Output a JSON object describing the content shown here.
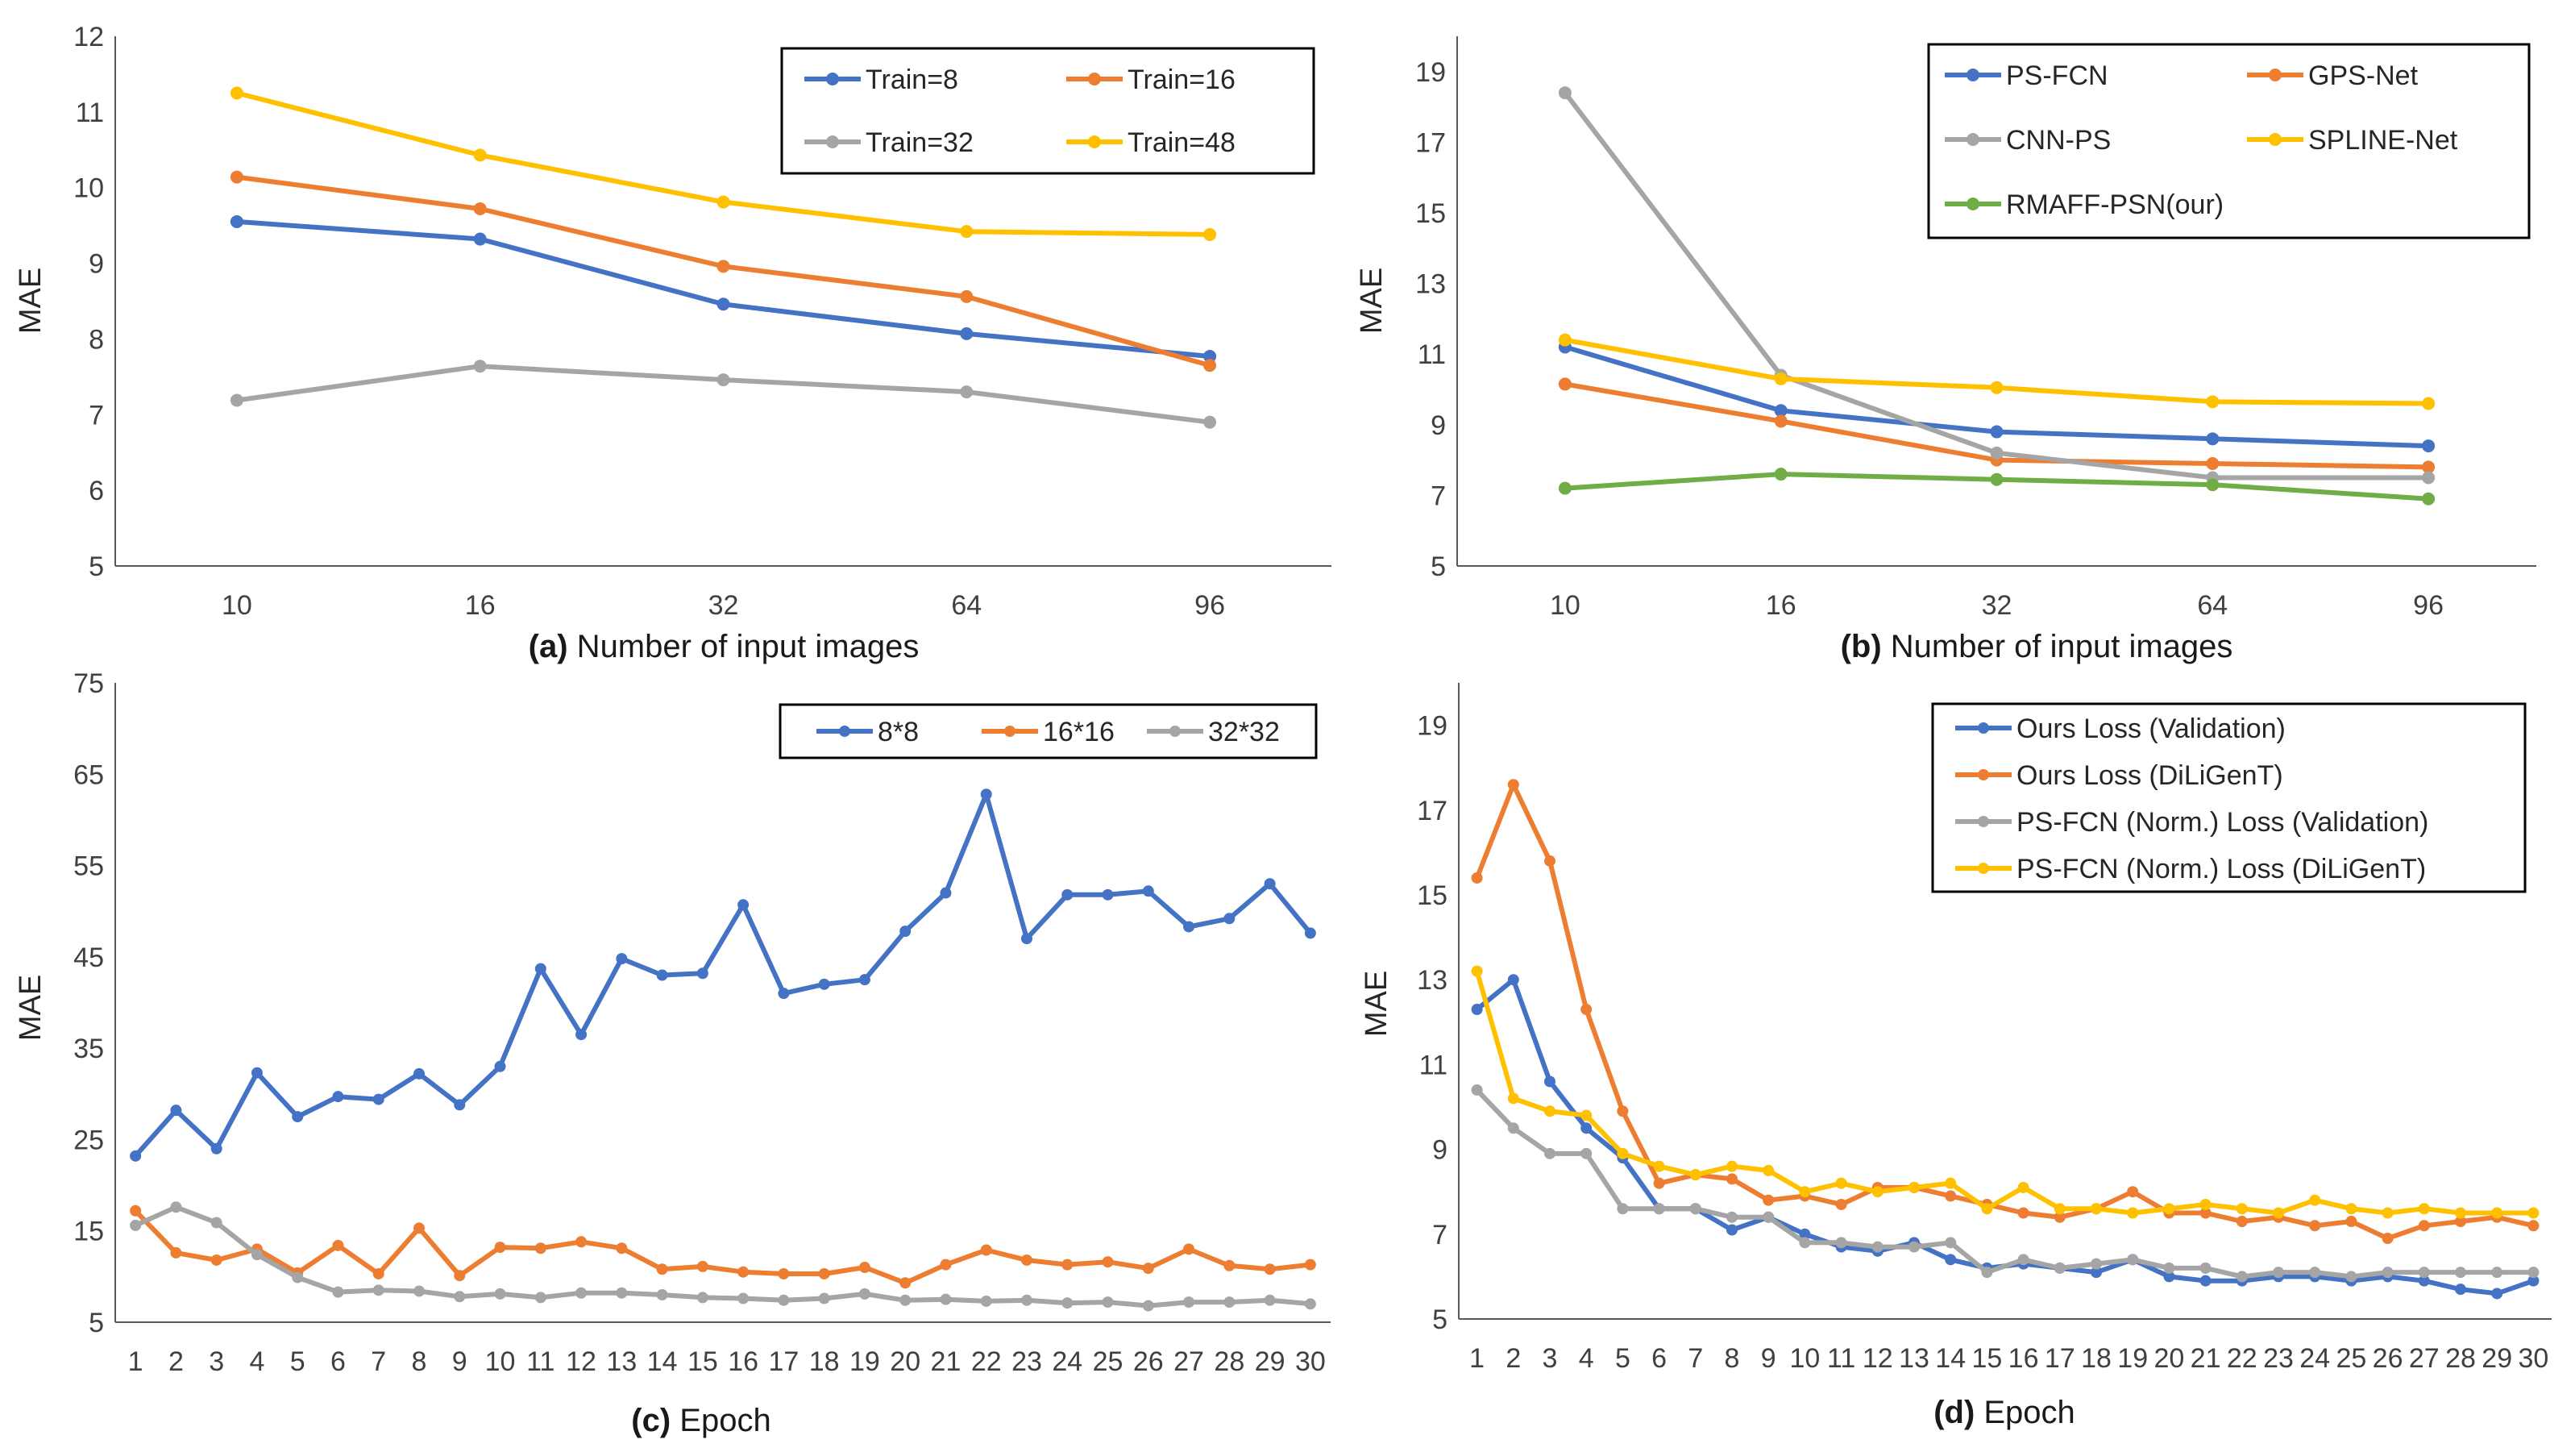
{
  "colors": {
    "blue": "#4472C4",
    "orange": "#ED7D31",
    "gray": "#A5A5A5",
    "yellow": "#FFC000",
    "green": "#70AD47"
  },
  "chart_data": [
    {
      "id": "a",
      "type": "line",
      "caption_prefix": "(a)",
      "caption_text": " Number of input images",
      "ylabel": "MAE",
      "categories": [
        "10",
        "16",
        "32",
        "64",
        "96"
      ],
      "ylim": [
        5,
        12
      ],
      "ystep": 1,
      "yticks": [
        "5",
        "6",
        "7",
        "8",
        "9",
        "10",
        "11",
        "12"
      ],
      "legend_position": "top-right",
      "series": [
        {
          "name": "Train=8",
          "color": "blue",
          "values": [
            9.55,
            9.32,
            8.46,
            8.07,
            7.77
          ]
        },
        {
          "name": "Train=16",
          "color": "orange",
          "values": [
            10.14,
            9.72,
            8.96,
            8.56,
            7.65
          ]
        },
        {
          "name": "Train=32",
          "color": "gray",
          "values": [
            7.19,
            7.64,
            7.46,
            7.3,
            6.9
          ]
        },
        {
          "name": "Train=48",
          "color": "yellow",
          "values": [
            11.25,
            10.43,
            9.81,
            9.42,
            9.38
          ]
        }
      ]
    },
    {
      "id": "b",
      "type": "line",
      "caption_prefix": "(b)",
      "caption_text": " Number of input images",
      "ylabel": "MAE",
      "categories": [
        "10",
        "16",
        "32",
        "64",
        "96"
      ],
      "ylim": [
        5,
        20
      ],
      "ystep": 2,
      "yticks": [
        "5",
        "7",
        "9",
        "11",
        "13",
        "15",
        "17",
        "19"
      ],
      "legend_position": "top-right",
      "series": [
        {
          "name": "PS-FCN",
          "color": "blue",
          "values": [
            11.2,
            9.4,
            8.8,
            8.6,
            8.4
          ]
        },
        {
          "name": "GPS-Net",
          "color": "orange",
          "values": [
            10.15,
            9.1,
            8.0,
            7.9,
            7.8
          ]
        },
        {
          "name": "CNN-PS",
          "color": "gray",
          "values": [
            18.4,
            10.4,
            8.2,
            7.5,
            7.5
          ]
        },
        {
          "name": "SPLINE-Net",
          "color": "yellow",
          "values": [
            11.4,
            10.3,
            10.05,
            9.65,
            9.6
          ]
        },
        {
          "name": "RMAFF-PSN(our)",
          "color": "green",
          "values": [
            7.2,
            7.6,
            7.45,
            7.3,
            6.9
          ]
        }
      ]
    },
    {
      "id": "c",
      "type": "line",
      "caption_prefix": "(c)",
      "caption_text": " Epoch",
      "ylabel": "MAE",
      "categories": [
        "1",
        "2",
        "3",
        "4",
        "5",
        "6",
        "7",
        "8",
        "9",
        "10",
        "11",
        "12",
        "13",
        "14",
        "15",
        "16",
        "17",
        "18",
        "19",
        "20",
        "21",
        "22",
        "23",
        "24",
        "25",
        "26",
        "27",
        "28",
        "29",
        "30"
      ],
      "ylim": [
        5,
        75
      ],
      "ystep": 10,
      "yticks": [
        "5",
        "15",
        "25",
        "35",
        "45",
        "55",
        "65",
        "75"
      ],
      "legend_position": "top-right",
      "series": [
        {
          "name": "8*8",
          "color": "blue",
          "values": [
            23.2,
            28.2,
            24.0,
            32.3,
            27.5,
            29.7,
            29.4,
            32.2,
            28.8,
            33.0,
            43.7,
            36.5,
            44.8,
            43.0,
            43.2,
            50.7,
            41.0,
            42.0,
            42.5,
            47.8,
            52.0,
            62.8,
            47.0,
            51.8,
            51.8,
            52.2,
            48.3,
            49.2,
            53.0,
            47.6
          ]
        },
        {
          "name": "16*16",
          "color": "orange",
          "values": [
            17.2,
            12.6,
            11.8,
            13.0,
            10.4,
            13.4,
            10.3,
            15.3,
            10.1,
            13.2,
            13.1,
            13.8,
            13.1,
            10.8,
            11.1,
            10.5,
            10.3,
            10.3,
            11.0,
            9.3,
            11.3,
            12.9,
            11.8,
            11.3,
            11.6,
            10.9,
            13.0,
            11.2,
            10.8,
            11.3
          ]
        },
        {
          "name": "32*32",
          "color": "gray",
          "values": [
            15.6,
            17.6,
            15.9,
            12.4,
            9.9,
            8.3,
            8.5,
            8.4,
            7.8,
            8.1,
            7.7,
            8.2,
            8.2,
            8.0,
            7.7,
            7.6,
            7.4,
            7.6,
            8.1,
            7.4,
            7.5,
            7.3,
            7.4,
            7.1,
            7.2,
            6.8,
            7.2,
            7.2,
            7.4,
            7.0
          ]
        }
      ]
    },
    {
      "id": "d",
      "type": "line",
      "caption_prefix": "(d)",
      "caption_text": " Epoch",
      "ylabel": "MAE",
      "categories": [
        "1",
        "2",
        "3",
        "4",
        "5",
        "6",
        "7",
        "8",
        "9",
        "10",
        "11",
        "12",
        "13",
        "14",
        "15",
        "16",
        "17",
        "18",
        "19",
        "20",
        "21",
        "22",
        "23",
        "24",
        "25",
        "26",
        "27",
        "28",
        "29",
        "30"
      ],
      "ylim": [
        5,
        20
      ],
      "ystep": 2,
      "yticks": [
        "5",
        "7",
        "9",
        "11",
        "13",
        "15",
        "17",
        "19"
      ],
      "legend_position": "top-right",
      "series": [
        {
          "name": "Ours Loss (Validation)",
          "color": "blue",
          "values": [
            12.3,
            13.0,
            10.6,
            9.5,
            8.8,
            7.6,
            7.6,
            7.1,
            7.4,
            7.0,
            6.7,
            6.6,
            6.8,
            6.4,
            6.2,
            6.3,
            6.2,
            6.1,
            6.4,
            6.0,
            5.9,
            5.9,
            6.0,
            6.0,
            5.9,
            6.0,
            5.9,
            5.7,
            5.6,
            5.9
          ]
        },
        {
          "name": "Ours Loss (DiLiGenT)",
          "color": "orange",
          "values": [
            15.4,
            17.6,
            15.8,
            12.3,
            9.9,
            8.2,
            8.4,
            8.3,
            7.8,
            7.9,
            7.7,
            8.1,
            8.1,
            7.9,
            7.7,
            7.5,
            7.4,
            7.6,
            8.0,
            7.5,
            7.5,
            7.3,
            7.4,
            7.2,
            7.3,
            6.9,
            7.2,
            7.3,
            7.4,
            7.2
          ]
        },
        {
          "name": "PS-FCN (Norm.) Loss (Validation)",
          "color": "gray",
          "values": [
            10.4,
            9.5,
            8.9,
            8.9,
            7.6,
            7.6,
            7.6,
            7.4,
            7.4,
            6.8,
            6.8,
            6.7,
            6.7,
            6.8,
            6.1,
            6.4,
            6.2,
            6.3,
            6.4,
            6.2,
            6.2,
            6.0,
            6.1,
            6.1,
            6.0,
            6.1,
            6.1,
            6.1,
            6.1,
            6.1
          ]
        },
        {
          "name": "PS-FCN (Norm.) Loss (DiLiGenT)",
          "color": "yellow",
          "values": [
            13.2,
            10.2,
            9.9,
            9.8,
            8.9,
            8.6,
            8.4,
            8.6,
            8.5,
            8.0,
            8.2,
            8.0,
            8.1,
            8.2,
            7.6,
            8.1,
            7.6,
            7.6,
            7.5,
            7.6,
            7.7,
            7.6,
            7.5,
            7.8,
            7.6,
            7.5,
            7.6,
            7.5,
            7.5,
            7.5
          ]
        }
      ]
    }
  ]
}
